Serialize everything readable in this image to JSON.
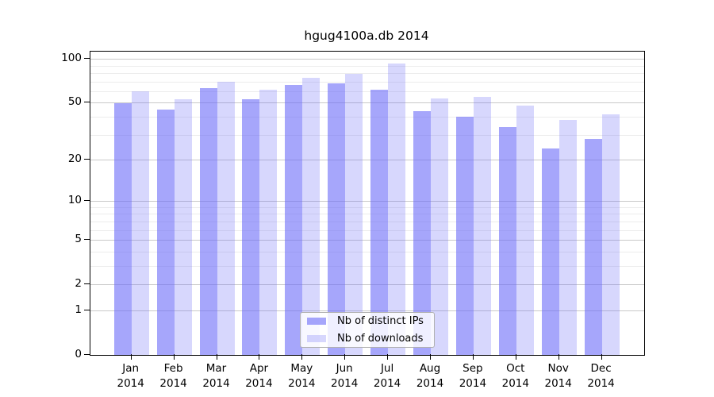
{
  "chart_data": {
    "type": "bar",
    "title": "hgug4100a.db 2014",
    "categories": [
      "Jan",
      "Feb",
      "Mar",
      "Apr",
      "May",
      "Jun",
      "Jul",
      "Aug",
      "Sep",
      "Oct",
      "Nov",
      "Dec"
    ],
    "category_year": "2014",
    "series": [
      {
        "name": "Nb of distinct IPs",
        "values": [
          50,
          45,
          63,
          53,
          67,
          68,
          62,
          44,
          40,
          34,
          24,
          28
        ]
      },
      {
        "name": "Nb of downloads",
        "values": [
          60,
          53,
          70,
          62,
          75,
          79,
          94,
          54,
          55,
          48,
          38,
          42
        ]
      }
    ],
    "xlabel": "",
    "ylabel": "",
    "y_ticks": [
      0,
      1,
      2,
      5,
      10,
      20,
      50,
      100
    ],
    "y_minor_ticks": [
      3,
      4,
      6,
      7,
      8,
      9,
      30,
      40,
      60,
      70,
      80,
      90
    ],
    "y_scale": "log1p",
    "ylim": [
      0,
      100
    ],
    "grid": "horizontal major + minor",
    "legend_position": "inside bottom-center"
  },
  "colors": {
    "bar_distinct_ips": "rgba(106,106,248,0.60)",
    "bar_downloads": "rgba(106,106,248,0.27)",
    "major_grid": "#c9c9c9",
    "minor_grid": "#ececec",
    "axis": "#000000",
    "legend_border": "#b0b0b0"
  }
}
